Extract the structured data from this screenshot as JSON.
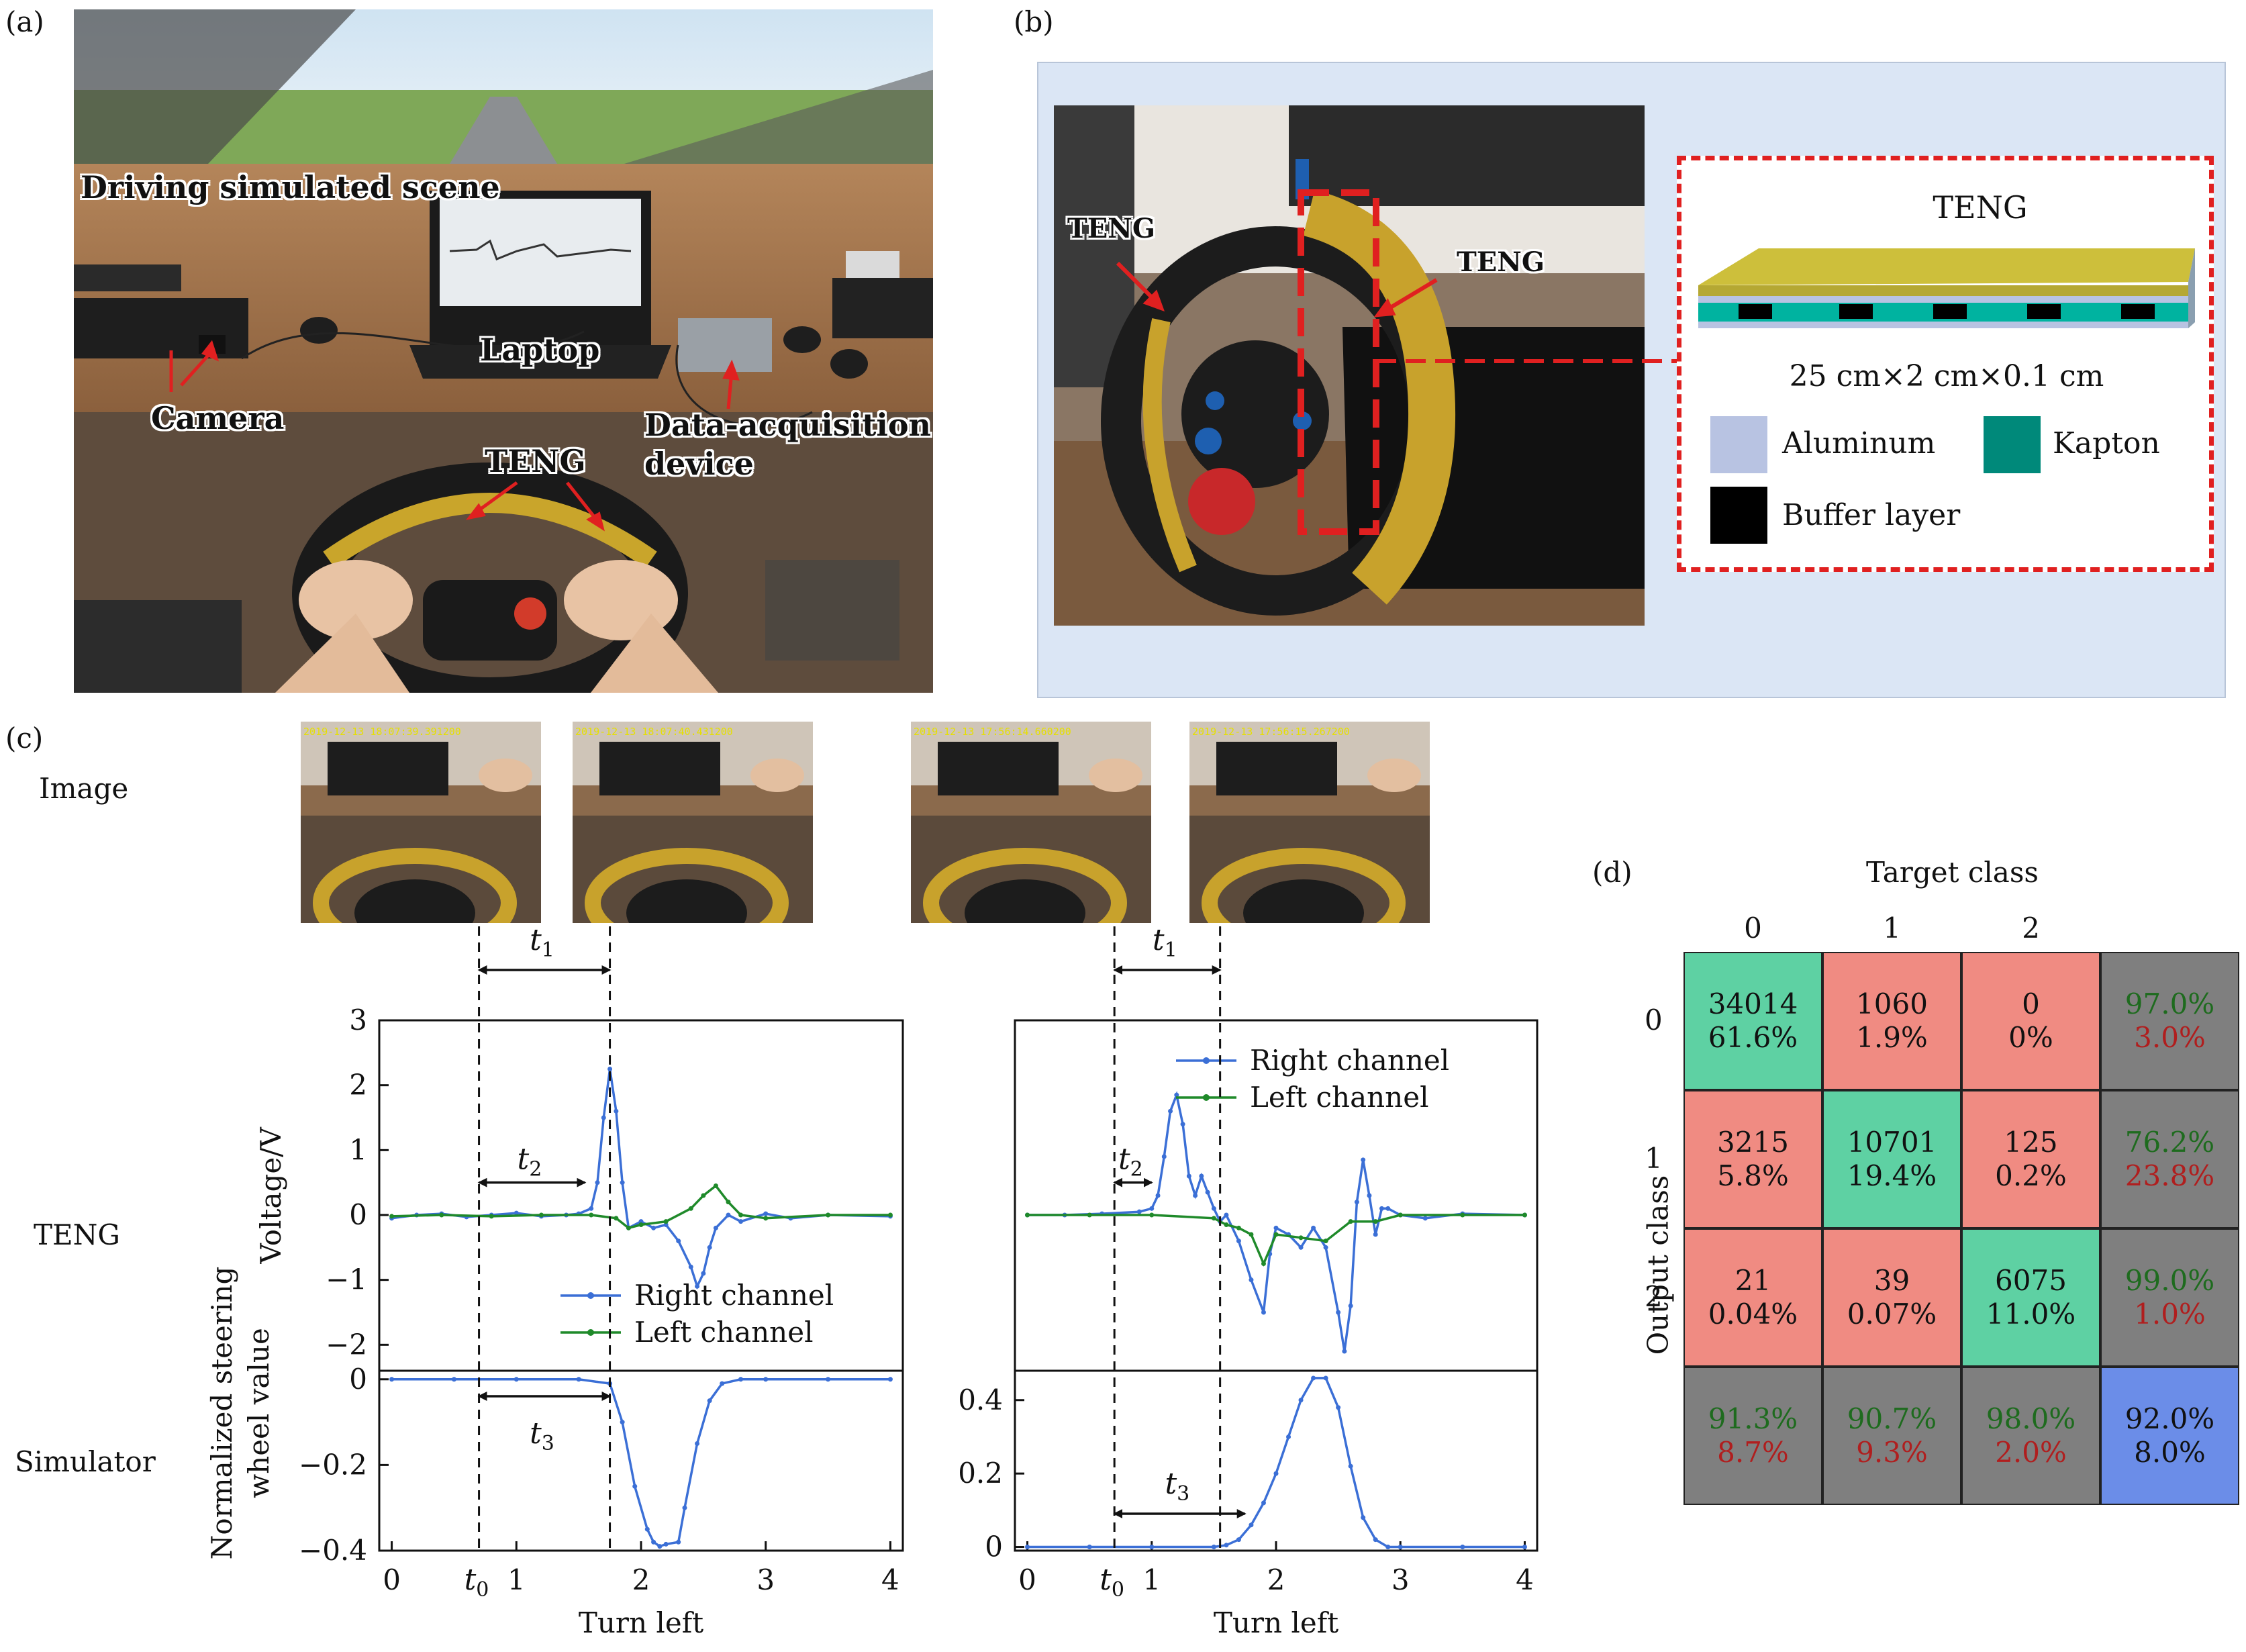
{
  "panel_labels": {
    "a": "(a)",
    "b": "(b)",
    "c": "(c)",
    "d": "(d)"
  },
  "panel_a": {
    "annotations": {
      "scene": "Driving simulated scene",
      "laptop": "Laptop",
      "camera": "Camera",
      "daq_line1": "Data-acquisition",
      "daq_line2": "device",
      "teng": "TENG"
    }
  },
  "panel_b": {
    "photo_labels": {
      "teng_left": "TENG",
      "teng_right": "TENG"
    },
    "inset": {
      "title": "TENG",
      "dimensions": "25 cm×2 cm×0.1 cm",
      "legend": [
        {
          "name": "Aluminum",
          "color": "#b8c3e2"
        },
        {
          "name": "Kapton",
          "color": "#00897a"
        },
        {
          "name": "Buffer layer",
          "color": "#000000"
        }
      ]
    }
  },
  "panel_c": {
    "row_labels": {
      "image": "Image",
      "teng": "TENG",
      "simulator": "Simulator"
    },
    "timestamps": [
      "2019-12-13 18:07:39.391200",
      "2019-12-13 18:07:40.431200",
      "2019-12-13 17:56:14.660200",
      "2019-12-13 17:56:15.267200"
    ],
    "interval_labels": {
      "t1": "t",
      "t1_sub": "1",
      "t2": "t",
      "t2_sub": "2",
      "t3": "t",
      "t3_sub": "3",
      "t0": "t",
      "t0_sub": "0"
    }
  },
  "chart_data": [
    {
      "type": "line",
      "id": "teng-left-turn-1",
      "ylabel": "Voltage/V",
      "ylim": [
        -2.4,
        3
      ],
      "xlim": [
        -0.1,
        4.1
      ],
      "yticks": [
        "3",
        "2",
        "1",
        "0",
        "−1",
        "−2"
      ],
      "legend_position": "bottom-right",
      "series": [
        {
          "name": "Right channel",
          "color": "#3b6fd6",
          "x": [
            0,
            0.2,
            0.4,
            0.6,
            0.8,
            1.0,
            1.2,
            1.4,
            1.5,
            1.6,
            1.65,
            1.7,
            1.75,
            1.8,
            1.85,
            1.9,
            2.0,
            2.1,
            2.2,
            2.3,
            2.4,
            2.45,
            2.5,
            2.55,
            2.6,
            2.7,
            2.8,
            3.0,
            3.2,
            3.5,
            4.0
          ],
          "y": [
            -0.05,
            0.0,
            0.02,
            -0.03,
            0.0,
            0.03,
            -0.02,
            0.0,
            0.02,
            0.1,
            0.5,
            1.5,
            2.25,
            1.6,
            0.5,
            -0.2,
            -0.1,
            -0.2,
            -0.15,
            -0.4,
            -0.8,
            -1.1,
            -0.9,
            -0.5,
            -0.2,
            0.0,
            -0.1,
            0.02,
            -0.05,
            0.0,
            -0.02
          ]
        },
        {
          "name": "Left channel",
          "color": "#1f8a2a",
          "x": [
            0,
            0.4,
            0.8,
            1.2,
            1.6,
            1.8,
            1.9,
            2.0,
            2.2,
            2.4,
            2.5,
            2.6,
            2.7,
            2.8,
            3.0,
            3.5,
            4.0
          ],
          "y": [
            -0.02,
            0.0,
            -0.02,
            0.0,
            0.0,
            -0.05,
            -0.2,
            -0.15,
            -0.1,
            0.1,
            0.3,
            0.45,
            0.2,
            0.0,
            -0.05,
            0.0,
            0.0
          ]
        }
      ]
    },
    {
      "type": "line",
      "id": "simulator-left-turn-1",
      "ylabel": "Normalized steering wheel value",
      "xlabel": "Turn left",
      "ylim": [
        -0.4,
        0.02
      ],
      "xlim": [
        -0.1,
        4.1
      ],
      "xticks": [
        "0",
        "1",
        "2",
        "3",
        "4"
      ],
      "yticks": [
        "0",
        "−0.2",
        "−0.4"
      ],
      "series": [
        {
          "name": "",
          "color": "#3b6fd6",
          "x": [
            0,
            0.5,
            1.0,
            1.5,
            1.75,
            1.85,
            1.95,
            2.05,
            2.1,
            2.15,
            2.2,
            2.3,
            2.35,
            2.45,
            2.55,
            2.65,
            2.8,
            3.0,
            3.5,
            4.0
          ],
          "y": [
            0,
            0,
            0,
            0,
            -0.01,
            -0.1,
            -0.25,
            -0.35,
            -0.38,
            -0.39,
            -0.385,
            -0.38,
            -0.3,
            -0.15,
            -0.05,
            -0.01,
            0,
            0,
            0,
            0
          ]
        }
      ]
    },
    {
      "type": "line",
      "id": "teng-left-turn-2",
      "ylim": [
        -2.4,
        3
      ],
      "xlim": [
        -0.1,
        4.1
      ],
      "legend_position": "top-right",
      "series": [
        {
          "name": "Right channel",
          "color": "#3b6fd6",
          "x": [
            0,
            0.3,
            0.6,
            0.9,
            1.0,
            1.05,
            1.1,
            1.15,
            1.2,
            1.25,
            1.3,
            1.35,
            1.4,
            1.45,
            1.5,
            1.55,
            1.6,
            1.7,
            1.8,
            1.9,
            1.95,
            2.0,
            2.1,
            2.2,
            2.3,
            2.4,
            2.5,
            2.55,
            2.6,
            2.65,
            2.7,
            2.75,
            2.8,
            2.85,
            2.9,
            3.0,
            3.2,
            3.5,
            4.0
          ],
          "y": [
            0,
            0.0,
            0.02,
            0.05,
            0.1,
            0.3,
            0.9,
            1.6,
            1.85,
            1.4,
            0.6,
            0.3,
            0.6,
            0.35,
            0.1,
            -0.1,
            0.0,
            -0.4,
            -1.0,
            -1.5,
            -0.6,
            -0.2,
            -0.3,
            -0.5,
            -0.2,
            -0.5,
            -1.5,
            -2.1,
            -1.4,
            0.2,
            0.85,
            0.3,
            -0.3,
            0.1,
            0.1,
            0.0,
            -0.05,
            0.02,
            0.0
          ]
        },
        {
          "name": "Left channel",
          "color": "#1f8a2a",
          "x": [
            0,
            0.5,
            1.0,
            1.5,
            1.6,
            1.7,
            1.8,
            1.9,
            2.0,
            2.2,
            2.4,
            2.6,
            2.8,
            3.0,
            3.5,
            4.0
          ],
          "y": [
            0,
            0.0,
            0.0,
            -0.05,
            -0.15,
            -0.2,
            -0.3,
            -0.75,
            -0.3,
            -0.35,
            -0.4,
            -0.1,
            -0.1,
            0.0,
            0.0,
            0.0
          ]
        }
      ]
    },
    {
      "type": "line",
      "id": "simulator-left-turn-2",
      "xlabel": "Turn left",
      "ylim": [
        -0.01,
        0.48
      ],
      "xlim": [
        -0.1,
        4.1
      ],
      "xticks": [
        "0",
        "1",
        "2",
        "3",
        "4"
      ],
      "yticks": [
        "0.4",
        "0.2",
        "0"
      ],
      "series": [
        {
          "name": "",
          "color": "#3b6fd6",
          "x": [
            0,
            0.5,
            1.0,
            1.5,
            1.6,
            1.7,
            1.8,
            1.9,
            2.0,
            2.1,
            2.2,
            2.3,
            2.4,
            2.5,
            2.6,
            2.7,
            2.8,
            2.9,
            3.0,
            3.5,
            4.0
          ],
          "y": [
            0,
            0,
            0,
            0,
            0.005,
            0.02,
            0.06,
            0.12,
            0.2,
            0.3,
            0.4,
            0.46,
            0.46,
            0.38,
            0.22,
            0.08,
            0.02,
            0.0,
            0,
            0,
            0
          ]
        }
      ]
    }
  ],
  "panel_d": {
    "target_title": "Target class",
    "output_title": "Output class",
    "col_headers": [
      "0",
      "1",
      "2"
    ],
    "row_headers": [
      "0",
      "1",
      "2"
    ],
    "colors": {
      "correct": "#5ed1a3",
      "wrong": "#f08b82",
      "summary": "#7f7f7f",
      "overall": "#6b8de8",
      "good_text": "#1e6b1e",
      "bad_text": "#b01e1e"
    },
    "rows": [
      [
        {
          "count": "34014",
          "pct": "61.6%",
          "kind": "correct"
        },
        {
          "count": "1060",
          "pct": "1.9%",
          "kind": "wrong"
        },
        {
          "count": "0",
          "pct": "0%",
          "kind": "wrong"
        },
        {
          "good": "97.0%",
          "bad": "3.0%",
          "kind": "summary"
        }
      ],
      [
        {
          "count": "3215",
          "pct": "5.8%",
          "kind": "wrong"
        },
        {
          "count": "10701",
          "pct": "19.4%",
          "kind": "correct"
        },
        {
          "count": "125",
          "pct": "0.2%",
          "kind": "wrong"
        },
        {
          "good": "76.2%",
          "bad": "23.8%",
          "kind": "summary"
        }
      ],
      [
        {
          "count": "21",
          "pct": "0.04%",
          "kind": "wrong"
        },
        {
          "count": "39",
          "pct": "0.07%",
          "kind": "wrong"
        },
        {
          "count": "6075",
          "pct": "11.0%",
          "kind": "correct"
        },
        {
          "good": "99.0%",
          "bad": "1.0%",
          "kind": "summary"
        }
      ],
      [
        {
          "good": "91.3%",
          "bad": "8.7%",
          "kind": "summary"
        },
        {
          "good": "90.7%",
          "bad": "9.3%",
          "kind": "summary"
        },
        {
          "good": "98.0%",
          "bad": "2.0%",
          "kind": "summary"
        },
        {
          "good": "92.0%",
          "bad": "8.0%",
          "kind": "overall"
        }
      ]
    ]
  }
}
